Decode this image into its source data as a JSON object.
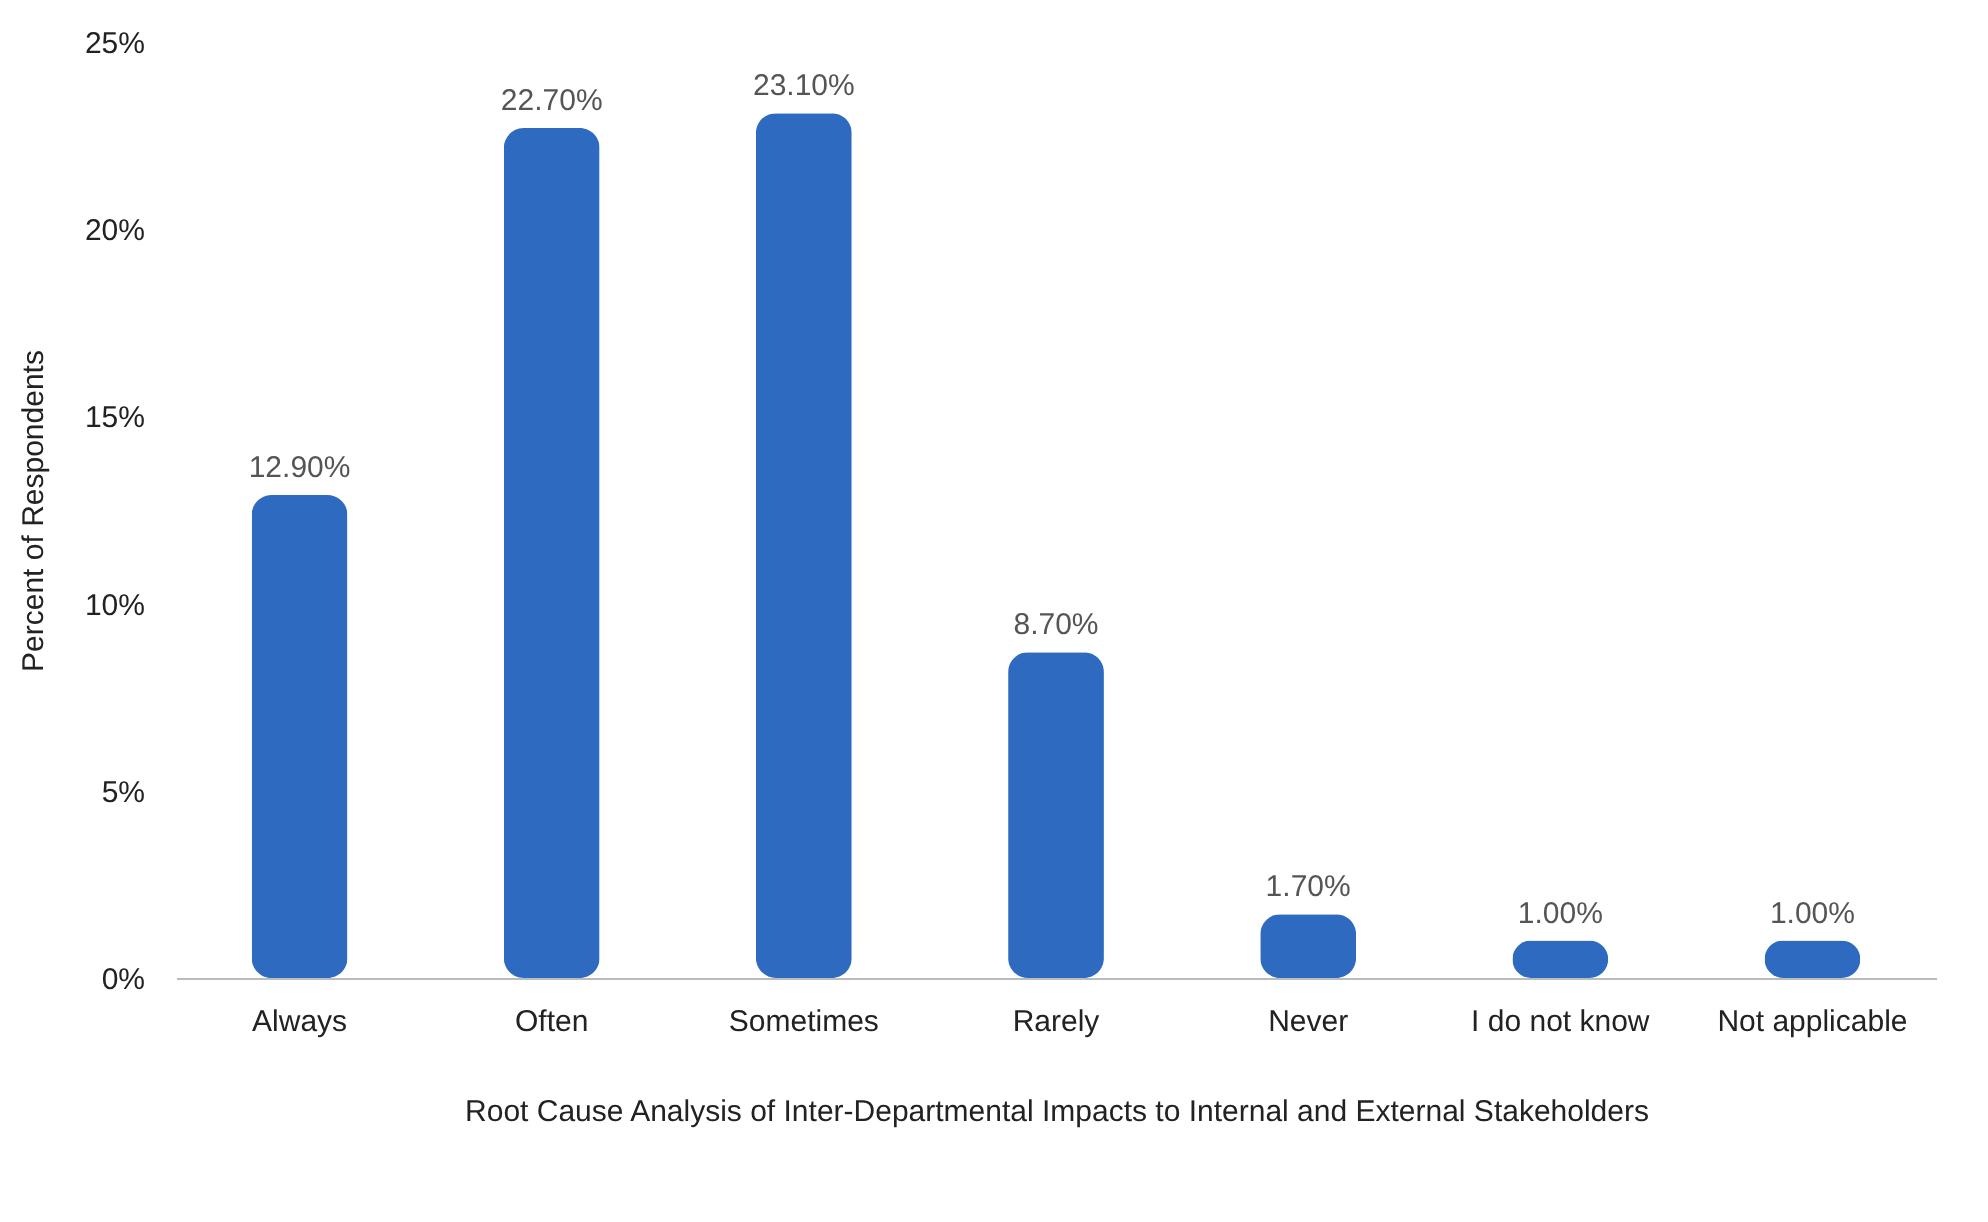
{
  "chart_data": {
    "type": "bar",
    "xlabel": "Root Cause Analysis of Inter-Departmental Impacts to Internal and External Stakeholders",
    "ylabel": "Percent of Respondents",
    "categories": [
      "Always",
      "Often",
      "Sometimes",
      "Rarely",
      "Never",
      "I do not know",
      "Not applicable"
    ],
    "values": [
      12.9,
      22.7,
      23.1,
      8.7,
      1.7,
      1.0,
      1.0
    ],
    "value_labels": [
      "12.90%",
      "22.70%",
      "23.10%",
      "8.70%",
      "1.70%",
      "1.00%",
      "1.00%"
    ],
    "color": "#2e6bc0",
    "ylim": [
      0,
      25
    ],
    "yticks": [
      {
        "value": 0,
        "label": "0%"
      },
      {
        "value": 5,
        "label": "5%"
      },
      {
        "value": 10,
        "label": "10%"
      },
      {
        "value": 15,
        "label": "15%"
      },
      {
        "value": 20,
        "label": "20%"
      },
      {
        "value": 25,
        "label": "25%"
      }
    ],
    "grid": false
  }
}
